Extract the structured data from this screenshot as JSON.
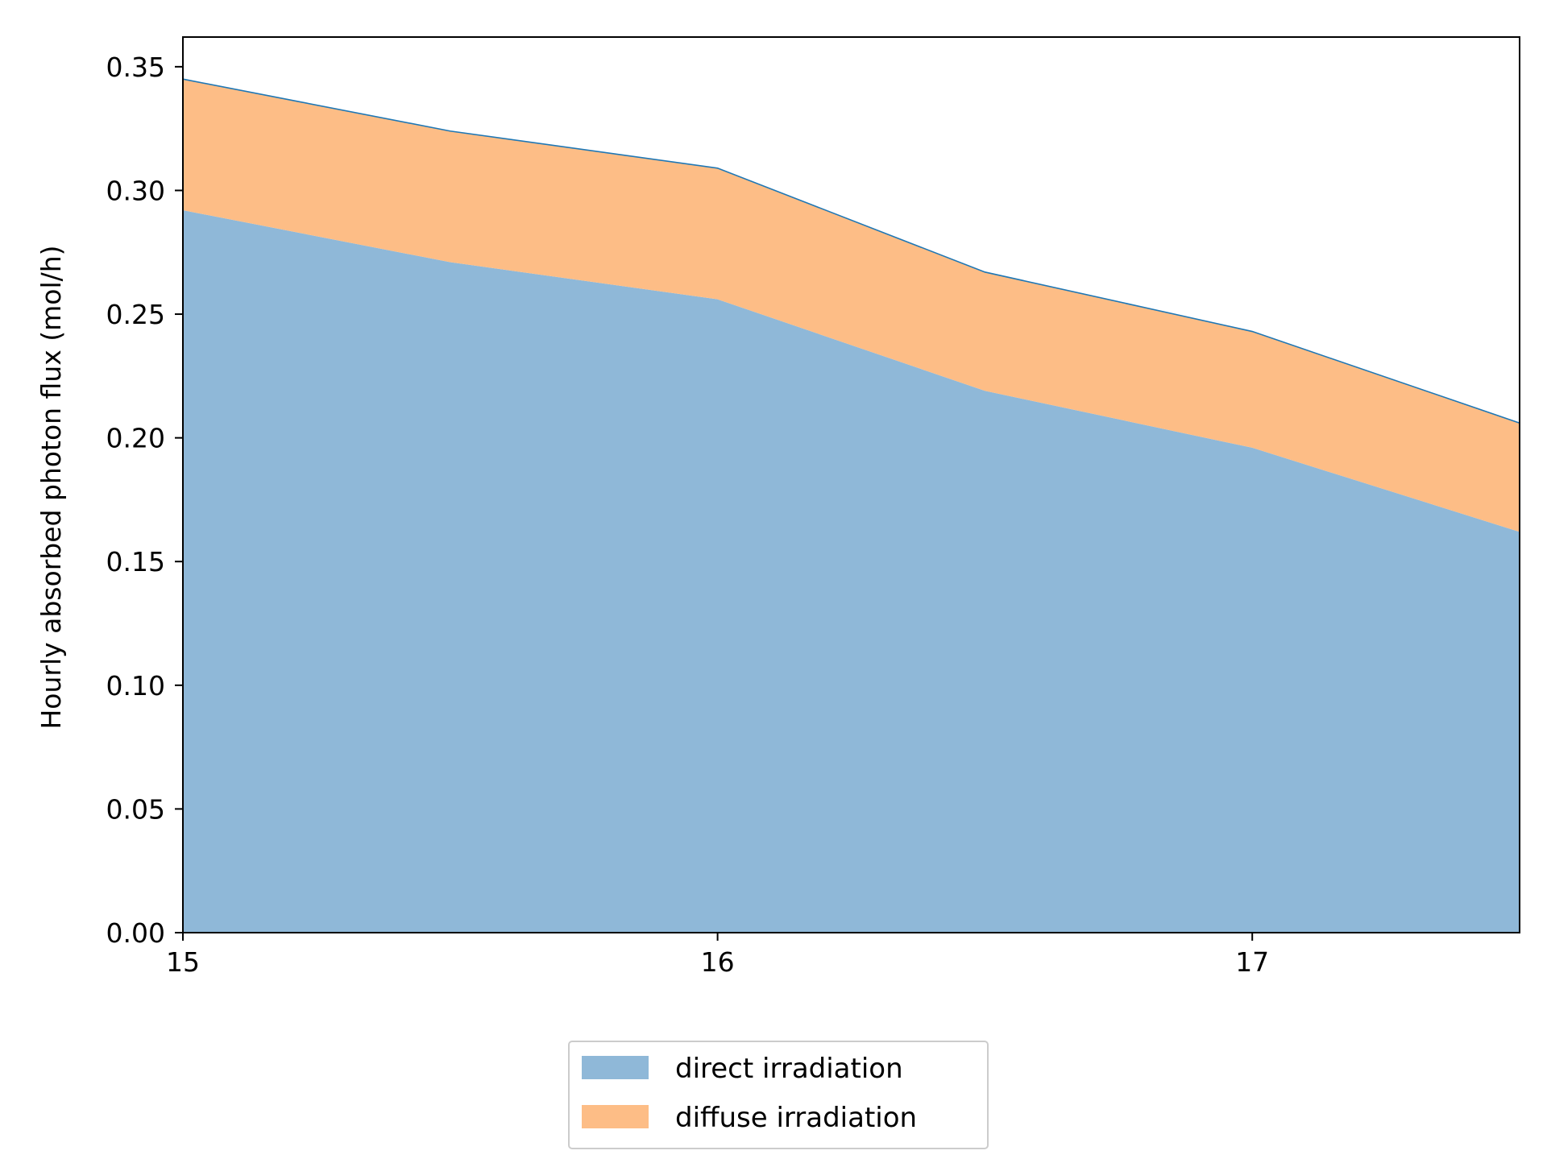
{
  "chart_data": {
    "type": "area",
    "stacked": true,
    "title": "",
    "xlabel": "",
    "ylabel": "Hourly absorbed photon flux (mol/h)",
    "x": [
      15.0,
      15.5,
      16.0,
      16.5,
      17.0,
      17.5
    ],
    "series": [
      {
        "name": "direct irradiation",
        "color": "#8fb8d8",
        "values": [
          0.292,
          0.271,
          0.256,
          0.219,
          0.196,
          0.162
        ]
      },
      {
        "name": "diffuse irradiation",
        "color": "#fdbd86",
        "values": [
          0.053,
          0.053,
          0.053,
          0.048,
          0.047,
          0.044
        ]
      }
    ],
    "top_line_color": "#1f77b4",
    "xlim": [
      15.0,
      17.5
    ],
    "ylim": [
      0.0,
      0.362
    ],
    "xticks": [
      15,
      16,
      17
    ],
    "xtick_labels": [
      "15",
      "16",
      "17"
    ],
    "yticks": [
      0.0,
      0.05,
      0.1,
      0.15,
      0.2,
      0.25,
      0.3,
      0.35
    ],
    "ytick_labels": [
      "0.00",
      "0.05",
      "0.10",
      "0.15",
      "0.20",
      "0.25",
      "0.30",
      "0.35"
    ],
    "grid": false,
    "legend_position": "bottom-center"
  }
}
